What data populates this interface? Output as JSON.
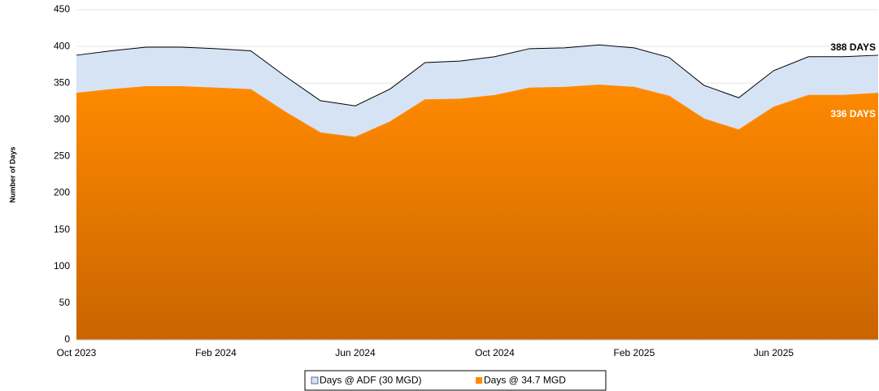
{
  "chart_data": {
    "type": "area",
    "y_label": "Number of Days",
    "categories": [
      "Oct 2023",
      null,
      null,
      null,
      "Feb 2024",
      null,
      null,
      null,
      "Jun 2024",
      null,
      null,
      null,
      "Oct 2024",
      null,
      null,
      null,
      "Feb 2025",
      null,
      null,
      null,
      "Jun 2025",
      null,
      null,
      null
    ],
    "series": [
      {
        "name": "Days @ ADF (30 MGD)",
        "color": "#d6e3f5",
        "values": [
          388,
          394,
          399,
          399,
          397,
          394,
          359,
          326,
          319,
          342,
          378,
          380,
          386,
          397,
          398,
          402,
          398,
          385,
          347,
          330,
          367,
          386,
          386,
          388
        ]
      },
      {
        "name": "Days @ 34.7 MGD",
        "color": "#ff8a00",
        "values": [
          336,
          341,
          345,
          345,
          343,
          341,
          310,
          282,
          276,
          297,
          327,
          328,
          333,
          343,
          344,
          347,
          344,
          332,
          301,
          286,
          317,
          333,
          333,
          336
        ]
      }
    ],
    "annotations": [
      "388 DAYS",
      "336 DAYS"
    ],
    "ylim": [
      0,
      450
    ],
    "yticks": [
      0,
      50,
      100,
      150,
      200,
      250,
      300,
      350,
      400,
      450
    ],
    "grid": true,
    "legend": "bottom"
  }
}
